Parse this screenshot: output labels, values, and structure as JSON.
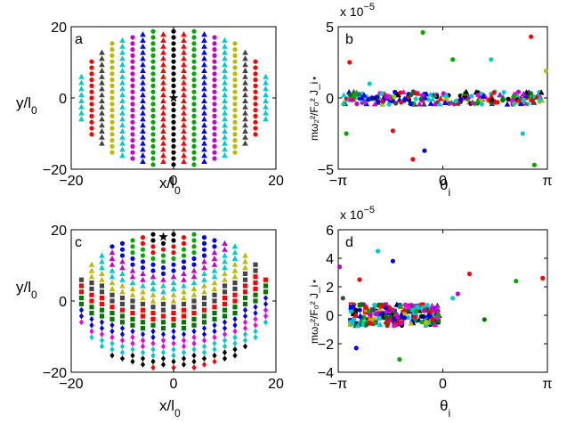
{
  "panels": [
    {
      "id": "a",
      "letter": "a",
      "type": "scatter",
      "xlabel_main": "x/l",
      "xlabel_sub": "0",
      "ylabel_main": "y/l",
      "ylabel_sub": "0",
      "xlim": [
        -20,
        20
      ],
      "ylim": [
        -20,
        20
      ],
      "xticks": [
        -20,
        0,
        20
      ],
      "yticks": [
        -20,
        0,
        20
      ],
      "xtick_labels": [
        "−20",
        "0",
        "20"
      ],
      "ytick_labels": [
        "−20",
        "0",
        "20"
      ],
      "star": [
        0,
        0
      ]
    },
    {
      "id": "b",
      "letter": "b",
      "type": "scatter",
      "ylabel_text": "mω₂²/F₀² J_i⋆",
      "xlabel_main": "θ",
      "xlabel_sub": "i",
      "xlim": [
        -3.1416,
        3.1416
      ],
      "ylim": [
        -5,
        5
      ],
      "xticks": [
        -3.1416,
        0,
        3.1416
      ],
      "xtick_labels": [
        "−π",
        "0",
        "π"
      ],
      "yticks": [
        -5,
        0,
        5
      ],
      "ytick_labels": [
        "−5",
        "0",
        "5"
      ],
      "scale_label": "x 10",
      "scale_exp": "−5"
    },
    {
      "id": "c",
      "letter": "c",
      "type": "scatter",
      "xlabel_main": "x/l",
      "xlabel_sub": "0",
      "ylabel_main": "y/l",
      "ylabel_sub": "0",
      "xlim": [
        -20,
        20
      ],
      "ylim": [
        -20,
        20
      ],
      "xticks": [
        -20,
        0,
        20
      ],
      "yticks": [
        -20,
        0,
        20
      ],
      "xtick_labels": [
        "−20",
        "0",
        "20"
      ],
      "ytick_labels": [
        "−20",
        "0",
        "20"
      ],
      "star": [
        -2,
        18
      ]
    },
    {
      "id": "d",
      "letter": "d",
      "type": "scatter",
      "ylabel_text": "mω₂²/F₀² J_i⋆",
      "xlabel_main": "θ",
      "xlabel_sub": "i",
      "xlim": [
        -3.1416,
        3.1416
      ],
      "ylim": [
        -4,
        6
      ],
      "xticks": [
        -3.1416,
        0,
        3.1416
      ],
      "xtick_labels": [
        "−π",
        "0",
        "π"
      ],
      "yticks": [
        -4,
        -2,
        0,
        2,
        4,
        6
      ],
      "ytick_labels": [
        "−4",
        "−2",
        "0",
        "2",
        "4",
        "6"
      ],
      "scale_label": "x 10",
      "scale_exp": "−5"
    }
  ],
  "ring_colors": [
    "#000000",
    "#ff0000",
    "#00aa00",
    "#0000ff",
    "#cc00cc",
    "#00cccc",
    "#bbbb00",
    "#444444",
    "#ff0000",
    "#007700",
    "#0000ee",
    "#ee00ee",
    "#00cccc"
  ],
  "chart_data": {
    "type": "scatter",
    "note_panels": [
      "a",
      "b",
      "c",
      "d"
    ],
    "lattice_ring_colors": [
      "#000000",
      "#ff0000",
      "#00aa00",
      "#0000ff",
      "#cc00cc",
      "#00cccc",
      "#bbbb00",
      "#444444"
    ],
    "panel_b_outliers": [
      {
        "x": -2.8,
        "y": 2.5,
        "color": "#ff0000"
      },
      {
        "x": -2.9,
        "y": -2.5,
        "color": "#00aa00"
      },
      {
        "x": -2.2,
        "y": 1.0,
        "color": "#00cccc"
      },
      {
        "x": -0.6,
        "y": 4.6,
        "color": "#00aa00"
      },
      {
        "x": -0.9,
        "y": -4.3,
        "color": "#ff0000"
      },
      {
        "x": -0.55,
        "y": -3.7,
        "color": "#0000ff"
      },
      {
        "x": 0.3,
        "y": 2.7,
        "color": "#00aa00"
      },
      {
        "x": 1.45,
        "y": 2.7,
        "color": "#00cccc"
      },
      {
        "x": 2.65,
        "y": 4.3,
        "color": "#ff0000"
      },
      {
        "x": 2.75,
        "y": -4.7,
        "color": "#00aa00"
      },
      {
        "x": 2.4,
        "y": -2.5,
        "color": "#00cccc"
      },
      {
        "x": 3.1,
        "y": 1.9,
        "color": "#bbbb00"
      },
      {
        "x": -1.5,
        "y": -2.3,
        "color": "#ff0000"
      }
    ],
    "panel_d_outliers": [
      {
        "x": -3.1,
        "y": 3.4,
        "color": "#cc00cc"
      },
      {
        "x": -2.5,
        "y": 2.5,
        "color": "#ff0000"
      },
      {
        "x": -1.95,
        "y": 4.5,
        "color": "#00cccc"
      },
      {
        "x": -1.5,
        "y": 3.8,
        "color": "#0000ff"
      },
      {
        "x": -1.3,
        "y": -3.1,
        "color": "#00aa00"
      },
      {
        "x": 0.3,
        "y": 1.2,
        "color": "#00cccc"
      },
      {
        "x": 0.45,
        "y": 1.5,
        "color": "#cc00cc"
      },
      {
        "x": 0.8,
        "y": 2.9,
        "color": "#ff0000"
      },
      {
        "x": 2.2,
        "y": 2.4,
        "color": "#00aa00"
      },
      {
        "x": 3.0,
        "y": 2.6,
        "color": "#ff0000"
      },
      {
        "x": 1.25,
        "y": -0.3,
        "color": "#007700"
      },
      {
        "x": -3.0,
        "y": 1.2,
        "color": "#444444"
      },
      {
        "x": -2.6,
        "y": -2.3,
        "color": "#0000ff"
      }
    ]
  }
}
